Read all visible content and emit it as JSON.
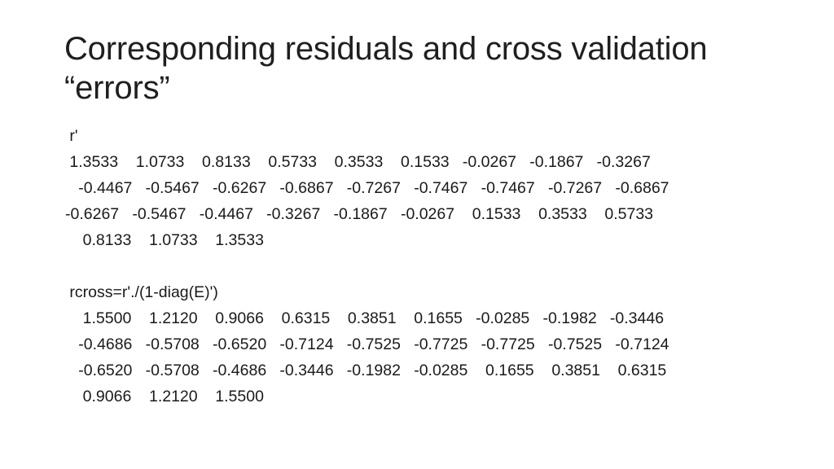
{
  "title": {
    "line1": "Corresponding residuals and cross validation",
    "line2": "“errors”"
  },
  "block_r": {
    "label": " r'",
    "rows": [
      " 1.3533    1.0733    0.8133    0.5733    0.3533    0.1533   -0.0267   -0.1867   -0.3267",
      "   -0.4467   -0.5467   -0.6267   -0.6867   -0.7267   -0.7467   -0.7467   -0.7267   -0.6867",
      "-0.6267   -0.5467   -0.4467   -0.3267   -0.1867   -0.0267    0.1533    0.3533    0.5733",
      "    0.8133    1.0733    1.3533"
    ]
  },
  "block_rcross": {
    "label": " rcross=r'./(1-diag(E)')",
    "rows": [
      "    1.5500    1.2120    0.9066    0.6315    0.3851    0.1655   -0.0285   -0.1982   -0.3446",
      "   -0.4686   -0.5708   -0.6520   -0.7124   -0.7525   -0.7725   -0.7725   -0.7525   -0.7124",
      "   -0.6520   -0.5708   -0.4686   -0.3446   -0.1982   -0.0285    0.1655    0.3851    0.6315",
      "    0.9066    1.2120    1.5500"
    ]
  }
}
